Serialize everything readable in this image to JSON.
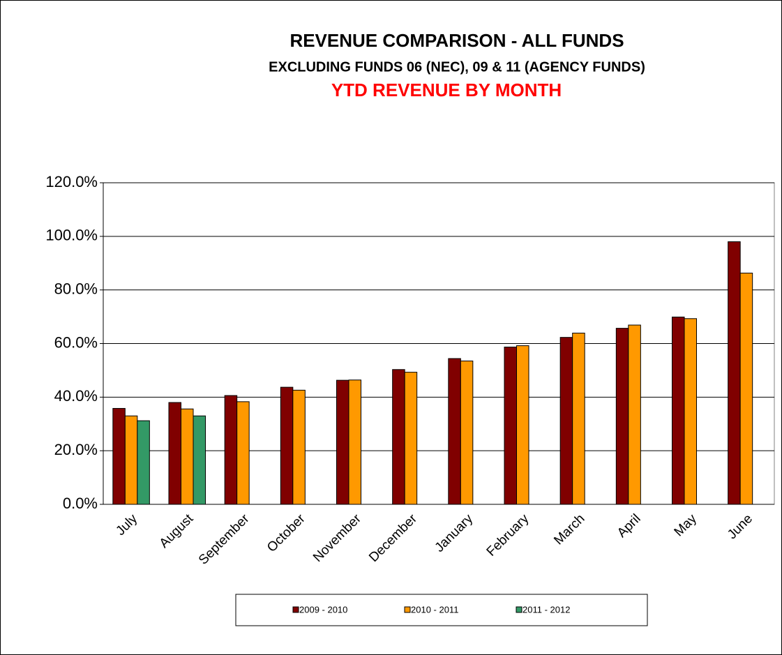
{
  "chart_data": {
    "type": "bar",
    "title": "REVENUE COMPARISON - ALL FUNDS",
    "subtitle": "EXCLUDING FUNDS 06 (NEC), 09 & 11 (AGENCY FUNDS)",
    "heading": "YTD REVENUE BY MONTH",
    "categories": [
      "July",
      "August",
      "September",
      "October",
      "November",
      "December",
      "January",
      "February",
      "March",
      "April",
      "May",
      "June"
    ],
    "series": [
      {
        "name": "2009 - 2010",
        "color": "#800000",
        "values": [
          35.8,
          38.0,
          40.6,
          43.7,
          46.3,
          50.3,
          54.4,
          58.7,
          62.3,
          65.7,
          69.9,
          98.0
        ]
      },
      {
        "name": "2010 - 2011",
        "color": "#ff9900",
        "values": [
          33.0,
          35.6,
          38.3,
          42.6,
          46.4,
          49.3,
          53.5,
          59.2,
          63.9,
          66.9,
          69.3,
          86.3
        ]
      },
      {
        "name": "2011 - 2012",
        "color": "#339966",
        "values": [
          31.2,
          33.0,
          null,
          null,
          null,
          null,
          null,
          null,
          null,
          null,
          null,
          null
        ]
      }
    ],
    "ylim": [
      0,
      120
    ],
    "yticks": [
      {
        "value": 0,
        "label": "0.0%"
      },
      {
        "value": 20,
        "label": "20.0%"
      },
      {
        "value": 40,
        "label": "40.0%"
      },
      {
        "value": 60,
        "label": "60.0%"
      },
      {
        "value": 80,
        "label": "80.0%"
      },
      {
        "value": 100,
        "label": "100.0%"
      },
      {
        "value": 120,
        "label": "120.0%"
      }
    ],
    "grid": true,
    "legend": "bottom"
  }
}
